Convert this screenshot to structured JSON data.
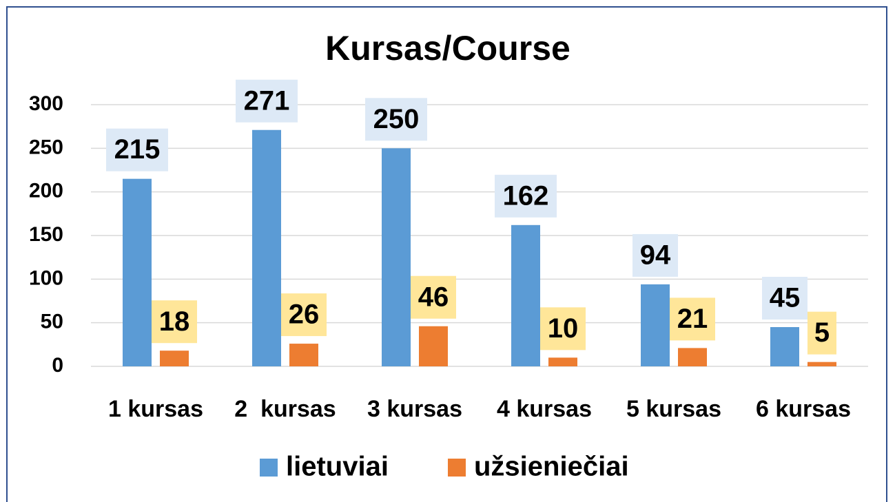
{
  "chart_data": {
    "type": "bar",
    "title": "Kursas/Course",
    "categories": [
      "1 kursas",
      "2  kursas",
      "3 kursas",
      "4 kursas",
      "5 kursas",
      "6 kursas"
    ],
    "series": [
      {
        "name": "lietuviai",
        "color": "#5b9bd5",
        "values": [
          215,
          271,
          250,
          162,
          94,
          45
        ]
      },
      {
        "name": "užsieniečiai",
        "color": "#ed7d31",
        "values": [
          18,
          26,
          46,
          10,
          21,
          5
        ]
      }
    ],
    "ylim": [
      0,
      300
    ],
    "yticks": [
      0,
      50,
      100,
      150,
      200,
      250,
      300
    ],
    "grid": true,
    "legend": "bottom"
  }
}
